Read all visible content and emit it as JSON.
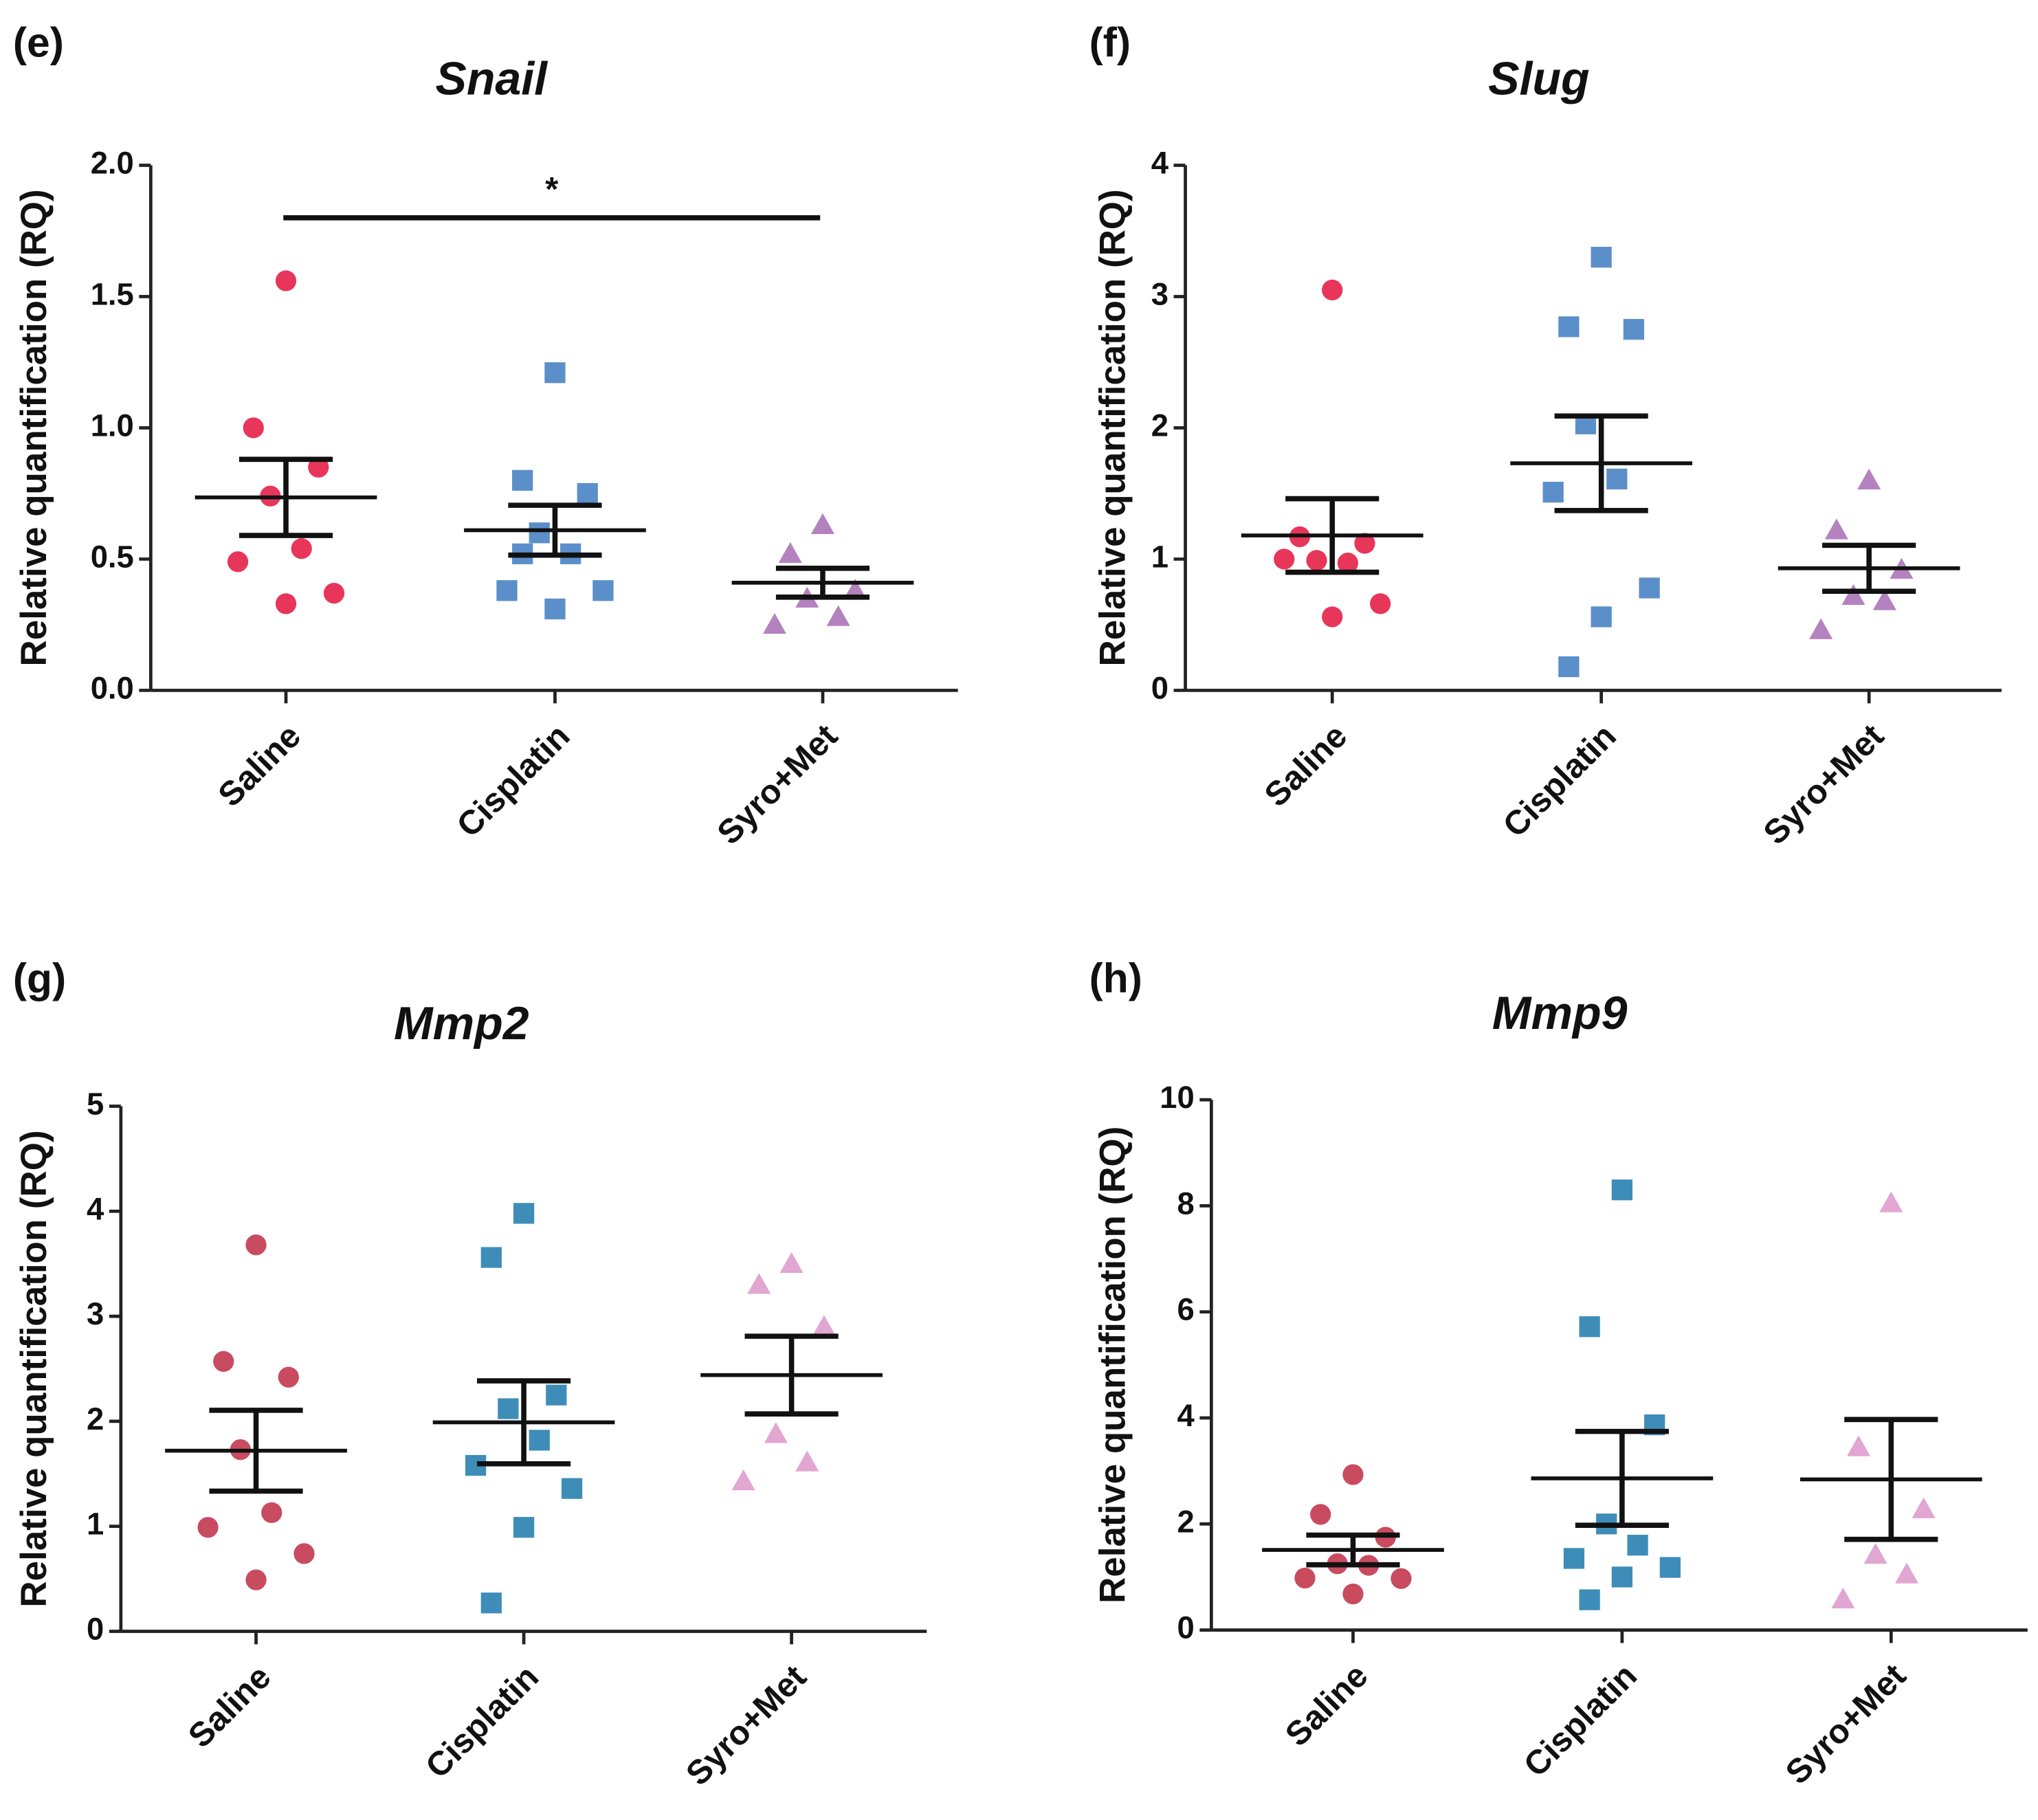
{
  "chart_data": [
    {
      "type": "dot",
      "panel": "(e)",
      "title": "Snail",
      "y_label": "Relative quantification (RQ)",
      "categories": [
        "Saline",
        "Cisplatin",
        "Syro+Met"
      ],
      "ylim": [
        0,
        2
      ],
      "yticks": [
        {
          "value": 0,
          "label": "0.0"
        },
        0.5,
        {
          "value": 1,
          "label": "1.0"
        },
        1.5,
        {
          "value": 2,
          "label": "2.0"
        }
      ],
      "significance": {
        "y": 1.8,
        "label": "*"
      },
      "groups": [
        {
          "color": "#e8365a",
          "marker": "circle",
          "values": [
            1.56,
            1.0,
            0.85,
            0.74,
            0.54,
            0.49,
            0.37,
            0.33
          ],
          "mean": 0.735,
          "sem": 0.145
        },
        {
          "color": "#5b8fc9",
          "marker": "square",
          "values": [
            1.21,
            0.8,
            0.75,
            0.6,
            0.52,
            0.38,
            0.38,
            0.31,
            0.52
          ],
          "mean": 0.61,
          "sem": 0.095
        },
        {
          "color": "#b482bf",
          "marker": "triangle",
          "values": [
            0.63,
            0.52,
            0.38,
            0.35,
            0.28,
            0.25
          ],
          "mean": 0.41,
          "sem": 0.055
        }
      ]
    },
    {
      "type": "dot",
      "panel": "(f)",
      "title": "Slug",
      "y_label": "Relative quantification (RQ)",
      "categories": [
        "Saline",
        "Cisplatin",
        "Syro+Met"
      ],
      "ylim": [
        0,
        4
      ],
      "yticks": [
        0,
        1,
        2,
        3,
        4
      ],
      "groups": [
        {
          "color": "#e8365a",
          "marker": "circle",
          "values": [
            3.05,
            1.17,
            1.12,
            0.99,
            0.97,
            1.0,
            0.66,
            0.56
          ],
          "mean": 1.18,
          "sem": 0.28
        },
        {
          "color": "#5b8fc9",
          "marker": "square",
          "values": [
            3.3,
            2.77,
            2.75,
            2.03,
            1.61,
            1.51,
            0.78,
            0.56,
            0.18
          ],
          "mean": 1.73,
          "sem": 0.36
        },
        {
          "color": "#b482bf",
          "marker": "triangle",
          "values": [
            1.6,
            1.22,
            0.92,
            0.72,
            0.68,
            0.46
          ],
          "mean": 0.93,
          "sem": 0.175
        }
      ]
    },
    {
      "type": "dot",
      "panel": "(g)",
      "title": "Mmp2",
      "y_label": "Relative quantification (RQ)",
      "categories": [
        "Saline",
        "Cisplatin",
        "Syro+Met"
      ],
      "ylim": [
        0,
        5
      ],
      "yticks": [
        0,
        1,
        2,
        3,
        4,
        5
      ],
      "groups": [
        {
          "color": "#c84b5f",
          "marker": "circle",
          "values": [
            3.68,
            2.57,
            2.42,
            1.73,
            1.13,
            0.99,
            0.74,
            0.49
          ],
          "mean": 1.72,
          "sem": 0.385
        },
        {
          "color": "#3e8db8",
          "marker": "square",
          "values": [
            3.98,
            3.56,
            2.25,
            2.12,
            1.82,
            1.58,
            1.36,
            0.99,
            0.27
          ],
          "mean": 1.99,
          "sem": 0.395
        },
        {
          "color": "#e1a6d2",
          "marker": "triangle",
          "values": [
            3.5,
            3.3,
            2.9,
            1.88,
            1.61,
            1.43
          ],
          "mean": 2.44,
          "sem": 0.37
        }
      ]
    },
    {
      "type": "dot",
      "panel": "(h)",
      "title": "Mmp9",
      "y_label": "Relative quantification (RQ)",
      "categories": [
        "Saline",
        "Cisplatin",
        "Syro+Met"
      ],
      "ylim": [
        0,
        10
      ],
      "yticks": [
        0,
        2,
        4,
        6,
        8,
        10
      ],
      "groups": [
        {
          "color": "#c84b5f",
          "marker": "circle",
          "values": [
            2.93,
            2.18,
            1.75,
            1.25,
            1.22,
            0.98,
            0.97,
            0.68
          ],
          "mean": 1.51,
          "sem": 0.28
        },
        {
          "color": "#3e8db8",
          "marker": "square",
          "values": [
            8.3,
            5.72,
            3.87,
            2.0,
            1.6,
            1.35,
            1.18,
            1.0,
            0.57
          ],
          "mean": 2.86,
          "sem": 0.885
        },
        {
          "color": "#e1a6d2",
          "marker": "triangle",
          "values": [
            8.05,
            3.45,
            2.28,
            1.42,
            1.05,
            0.58
          ],
          "mean": 2.84,
          "sem": 1.13
        }
      ]
    }
  ]
}
